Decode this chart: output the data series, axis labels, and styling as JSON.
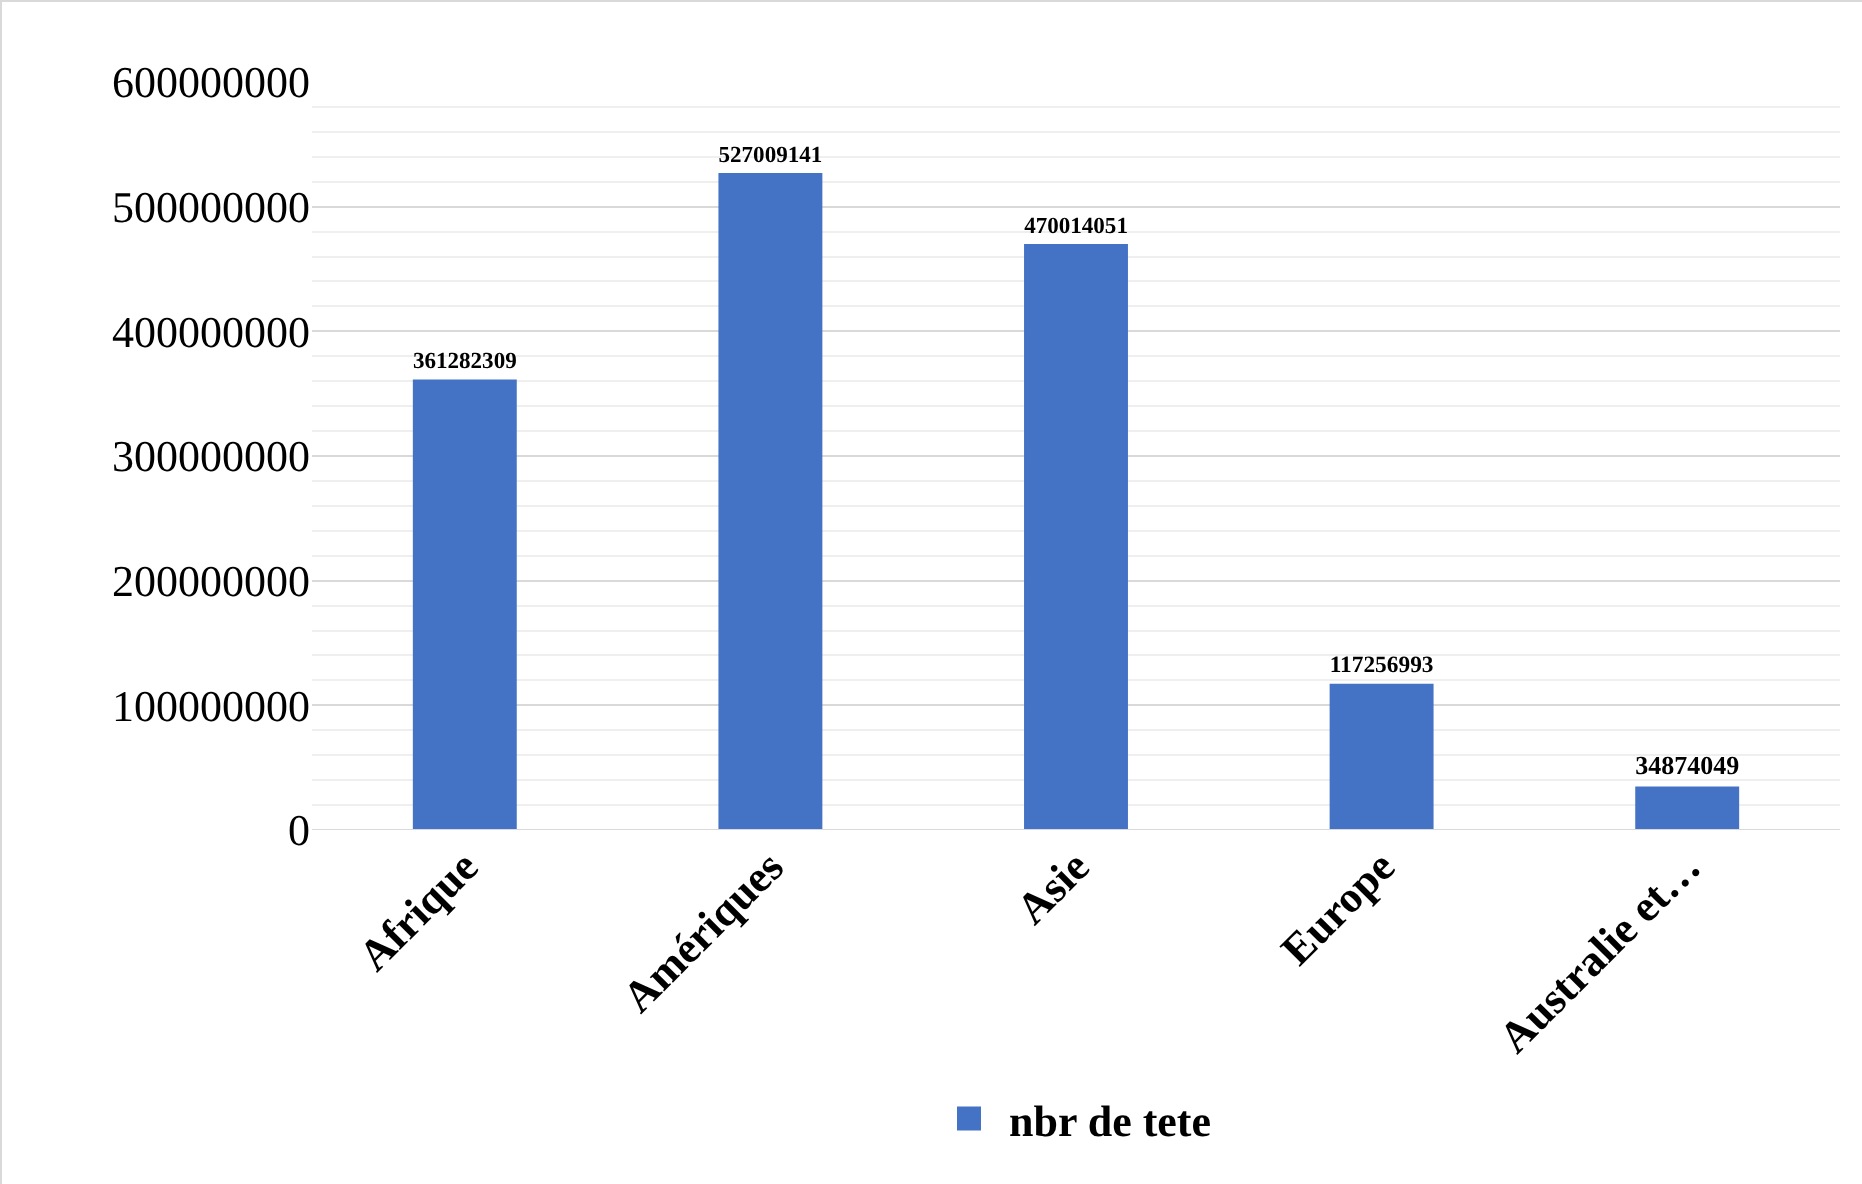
{
  "chart_data": {
    "type": "bar",
    "categories": [
      "Afrique",
      "Amériques",
      "Asie",
      "Europe",
      "Australie et…"
    ],
    "series": [
      {
        "name": "nbr de tete",
        "color": "#4472c4",
        "values": [
          361282309,
          527009141,
          470014051,
          117256993,
          34874049
        ]
      }
    ],
    "ylim": [
      0,
      600000000
    ],
    "yticks": [
      0,
      100000000,
      200000000,
      300000000,
      400000000,
      500000000,
      600000000
    ],
    "grid": "y",
    "legend": "bottom",
    "data_labels": true
  }
}
